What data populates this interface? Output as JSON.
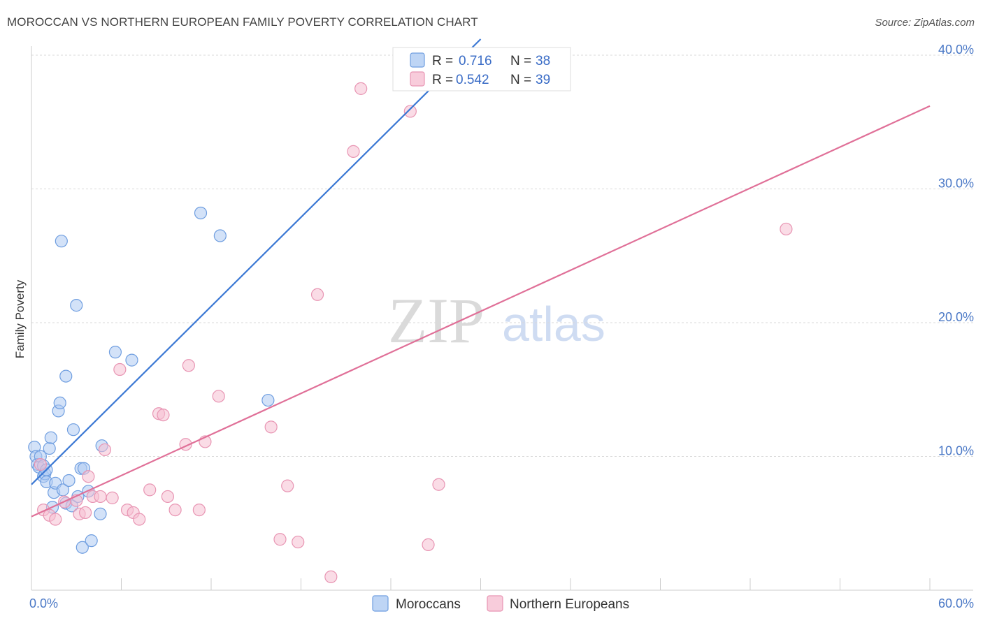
{
  "title": "MOROCCAN VS NORTHERN EUROPEAN FAMILY POVERTY CORRELATION CHART",
  "source": "Source: ZipAtlas.com",
  "watermark": {
    "zip": "ZIP",
    "atlas": "atlas"
  },
  "colors": {
    "blue_fill": "#aecbf2",
    "blue_stroke": "#6f9ee0",
    "blue_line": "#3b78d4",
    "pink_fill": "#f6bfd2",
    "pink_stroke": "#e895b3",
    "pink_line": "#e07098",
    "axis_label": "#4a78c6",
    "grid": "#d9d9d9"
  },
  "legend": {
    "r_label": "R =",
    "n_label": "N =",
    "series": [
      {
        "name": "Moroccans",
        "r": "0.716",
        "n": "38"
      },
      {
        "name": "Northern Europeans",
        "r": "0.542",
        "n": "39"
      }
    ]
  },
  "chart_data": {
    "type": "scatter",
    "title": "MOROCCAN VS NORTHERN EUROPEAN FAMILY POVERTY CORRELATION CHART",
    "xlabel": "",
    "ylabel": "Family Poverty",
    "xlim": [
      0,
      60
    ],
    "ylim": [
      0,
      40
    ],
    "x_tick_labels": [
      "0.0%",
      "60.0%"
    ],
    "y_ticks": [
      10,
      20,
      30,
      40
    ],
    "y_tick_labels": [
      "10.0%",
      "20.0%",
      "30.0%",
      "40.0%"
    ],
    "series": [
      {
        "name": "Moroccans",
        "r": 0.716,
        "n": 38,
        "trend": {
          "x": [
            0,
            30
          ],
          "y": [
            7.9,
            41.2
          ]
        },
        "points": [
          [
            0.2,
            10.7
          ],
          [
            0.3,
            10.0
          ],
          [
            0.4,
            9.4
          ],
          [
            0.5,
            9.2
          ],
          [
            0.6,
            10.0
          ],
          [
            0.8,
            9.3
          ],
          [
            0.8,
            8.5
          ],
          [
            0.9,
            8.7
          ],
          [
            1.0,
            8.1
          ],
          [
            1.2,
            10.6
          ],
          [
            1.3,
            11.4
          ],
          [
            1.4,
            6.2
          ],
          [
            1.5,
            7.3
          ],
          [
            1.6,
            8.0
          ],
          [
            1.8,
            13.4
          ],
          [
            1.9,
            14.0
          ],
          [
            2.0,
            26.1
          ],
          [
            2.3,
            16.0
          ],
          [
            2.1,
            7.5
          ],
          [
            2.3,
            6.5
          ],
          [
            2.5,
            8.2
          ],
          [
            2.7,
            6.3
          ],
          [
            2.8,
            12.0
          ],
          [
            3.0,
            21.3
          ],
          [
            3.1,
            7.0
          ],
          [
            3.3,
            9.1
          ],
          [
            3.4,
            3.2
          ],
          [
            3.5,
            9.1
          ],
          [
            3.8,
            7.4
          ],
          [
            4.0,
            3.7
          ],
          [
            4.6,
            5.7
          ],
          [
            4.7,
            10.8
          ],
          [
            5.6,
            17.8
          ],
          [
            6.7,
            17.2
          ],
          [
            11.3,
            28.2
          ],
          [
            12.6,
            26.5
          ],
          [
            15.8,
            14.2
          ],
          [
            1.0,
            9.0
          ]
        ]
      },
      {
        "name": "Northern Europeans",
        "r": 0.542,
        "n": 39,
        "trend": {
          "x": [
            0,
            60
          ],
          "y": [
            5.5,
            36.2
          ]
        },
        "points": [
          [
            0.6,
            9.4
          ],
          [
            0.8,
            6.0
          ],
          [
            1.2,
            5.6
          ],
          [
            1.6,
            5.3
          ],
          [
            2.2,
            6.6
          ],
          [
            3.0,
            6.7
          ],
          [
            3.2,
            5.7
          ],
          [
            3.6,
            5.8
          ],
          [
            3.8,
            8.5
          ],
          [
            4.1,
            7.0
          ],
          [
            4.6,
            7.0
          ],
          [
            4.9,
            10.5
          ],
          [
            5.4,
            6.9
          ],
          [
            5.9,
            16.5
          ],
          [
            6.4,
            6.0
          ],
          [
            6.8,
            5.8
          ],
          [
            7.2,
            5.3
          ],
          [
            7.9,
            7.5
          ],
          [
            8.5,
            13.2
          ],
          [
            8.8,
            13.1
          ],
          [
            9.1,
            7.0
          ],
          [
            9.6,
            6.0
          ],
          [
            10.3,
            10.9
          ],
          [
            10.5,
            16.8
          ],
          [
            11.2,
            6.0
          ],
          [
            11.6,
            11.1
          ],
          [
            12.5,
            14.5
          ],
          [
            16.0,
            12.2
          ],
          [
            16.6,
            3.8
          ],
          [
            17.1,
            7.8
          ],
          [
            17.8,
            3.6
          ],
          [
            19.1,
            22.1
          ],
          [
            20.0,
            1.0
          ],
          [
            21.5,
            32.8
          ],
          [
            22.0,
            37.5
          ],
          [
            26.5,
            3.4
          ],
          [
            27.2,
            7.9
          ],
          [
            25.3,
            35.8
          ],
          [
            50.4,
            27.0
          ]
        ]
      }
    ]
  }
}
